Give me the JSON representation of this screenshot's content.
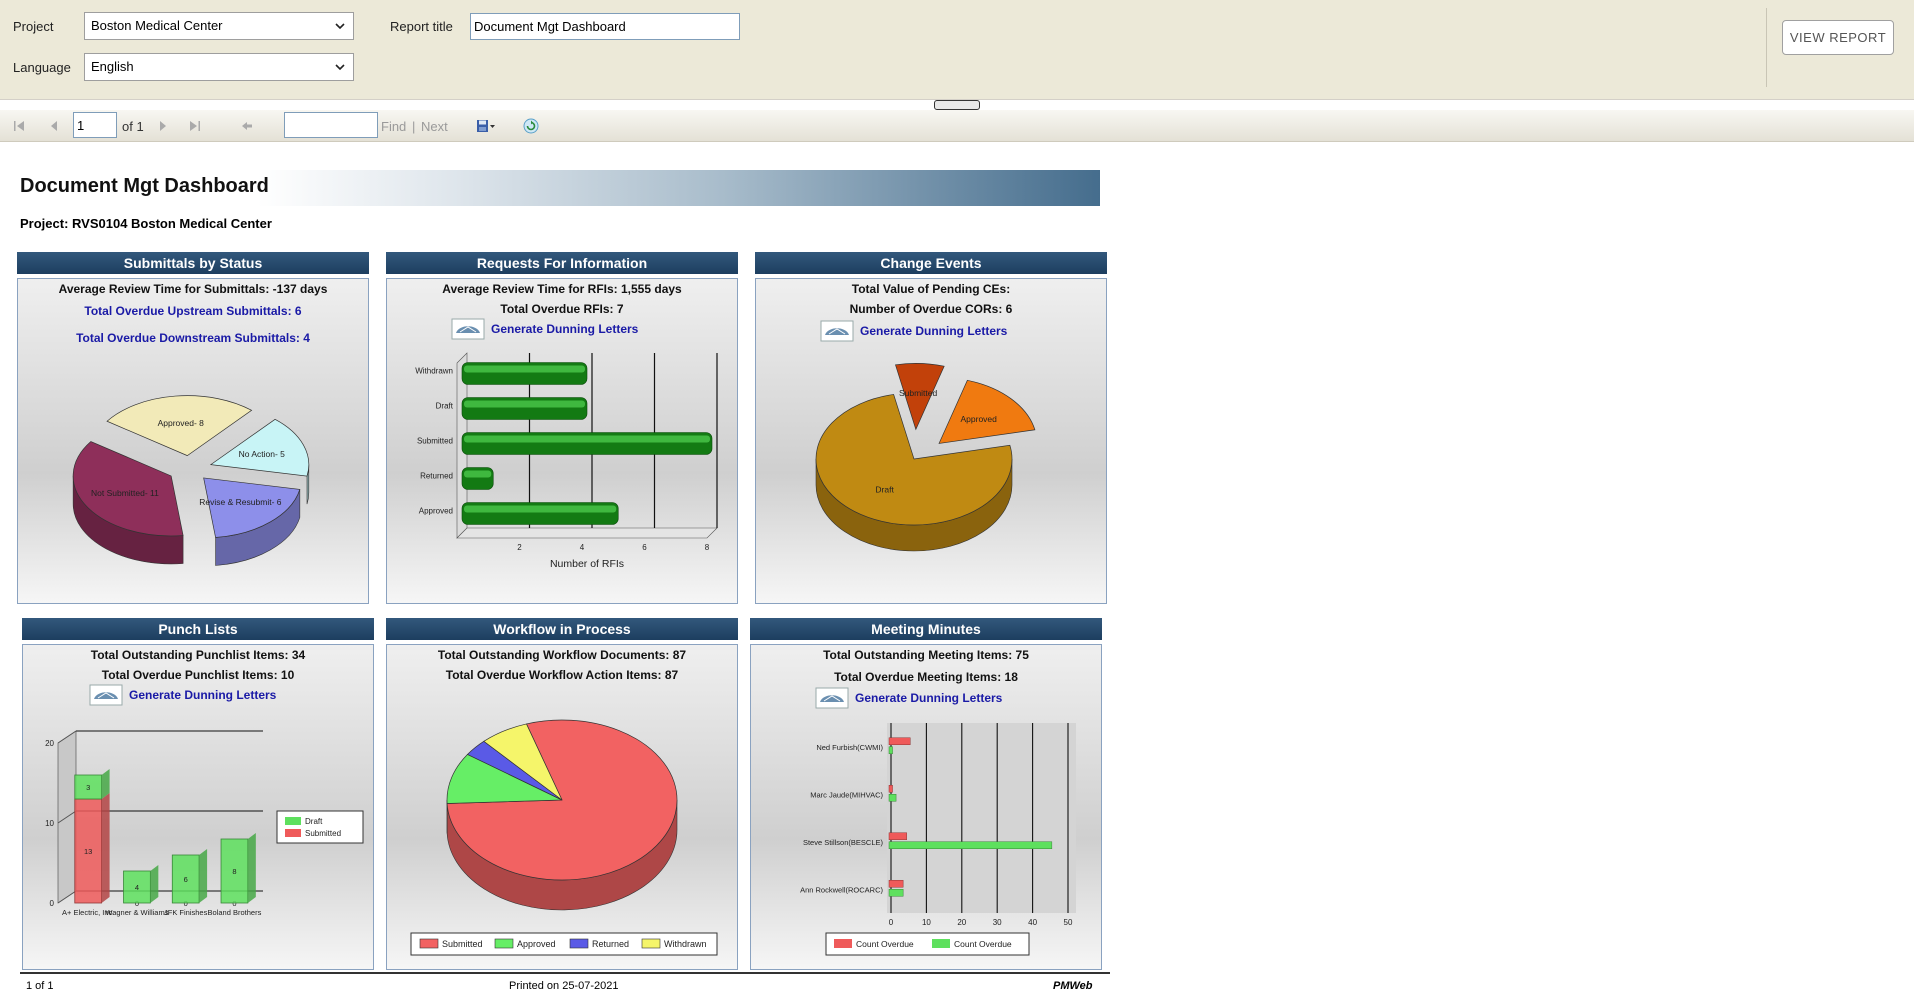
{
  "params": {
    "project_label": "Project",
    "project_value": "Boston Medical Center",
    "language_label": "Language",
    "language_value": "English",
    "report_title_label": "Report title",
    "report_title_value": "Document Mgt Dashboard",
    "view_report": "VIEW REPORT"
  },
  "toolbar": {
    "page_value": "1",
    "of_label": "of 1",
    "find_label": "Find",
    "sep": "|",
    "next_label": "Next"
  },
  "report": {
    "title": "Document Mgt Dashboard",
    "project_line": "Project: RVS0104 Boston Medical Center",
    "footer": {
      "page": "1 of 1",
      "printed": "Printed on 25-07-2021",
      "brand": "PMWeb"
    }
  },
  "panels": {
    "submittals": {
      "title": "Submittals by Status",
      "avg": "Average Review Time for Submittals:  -137 days",
      "upstream": "Total Overdue Upstream Submittals:  6",
      "downstream": "Total Overdue Downstream Submittals:  4"
    },
    "rfi": {
      "title": "Requests For Information",
      "avg": "Average Review Time for RFIs:  1,555 days",
      "overdue": "Total Overdue RFIs:  7",
      "dunning": "Generate Dunning Letters",
      "xlabel": "Number of RFIs"
    },
    "change": {
      "title": "Change Events",
      "value": "Total Value of Pending CEs:",
      "overdue": "Number of Overdue CORs: 6",
      "dunning": "Generate Dunning Letters"
    },
    "punch": {
      "title": "Punch Lists",
      "outstanding": "Total Outstanding Punchlist Items: 34",
      "overdue": "Total Overdue Punchlist Items: 10",
      "dunning": "Generate Dunning Letters"
    },
    "workflow": {
      "title": "Workflow in Process",
      "documents": "Total Outstanding Workflow Documents: 87",
      "overdue": "Total Overdue Workflow Action Items: 87"
    },
    "meeting": {
      "title": "Meeting Minutes",
      "outstanding": "Total Outstanding Meeting Items: 75",
      "overdue": "Total Overdue Meeting Items: 18",
      "dunning": "Generate Dunning Letters"
    }
  },
  "chart_data": [
    {
      "id": "submittals",
      "type": "pie",
      "slices": [
        {
          "label": "Approved- 8",
          "value": 8,
          "color": "#f2eab8"
        },
        {
          "label": "No Action- 5",
          "value": 5,
          "color": "#c8f4f6"
        },
        {
          "label": "Revise & Resubmit- 6",
          "value": 6,
          "color": "#8d8fea"
        },
        {
          "label": "Not Submitted- 11",
          "value": 11,
          "color": "#8e2f5a"
        }
      ]
    },
    {
      "id": "rfi",
      "type": "bar",
      "orientation": "horizontal",
      "categories": [
        "Withdrawn",
        "Draft",
        "Submitted",
        "Returned",
        "Approved"
      ],
      "values": [
        4,
        4,
        8,
        1,
        5
      ],
      "xticks": [
        2,
        4,
        6,
        8
      ],
      "xlim": [
        0,
        8
      ],
      "xlabel": "Number of RFIs",
      "color": "#1e8a1e"
    },
    {
      "id": "change",
      "type": "pie",
      "slices": [
        {
          "label": "Draft",
          "value": 75,
          "color": "#c08a12"
        },
        {
          "label": "Submitted",
          "value": 8,
          "color": "#c2410a"
        },
        {
          "label": "Approved",
          "value": 17,
          "color": "#f07a10"
        }
      ]
    },
    {
      "id": "punch",
      "type": "bar",
      "stacked": true,
      "categories": [
        "A+ Electric, Inc.",
        "Wagner & Williams",
        "JFK Finishes",
        "Boland Brothers"
      ],
      "series": [
        {
          "name": "Submitted",
          "values": [
            13,
            0,
            0,
            0
          ],
          "color": "#ef5a5a"
        },
        {
          "name": "Draft",
          "values": [
            3,
            4,
            6,
            8
          ],
          "color": "#5ee05e"
        }
      ],
      "yticks": [
        0,
        10,
        20
      ],
      "ylim": [
        0,
        20
      ],
      "legend": "right"
    },
    {
      "id": "workflow",
      "type": "pie",
      "slices": [
        {
          "label": "Submitted",
          "value": 69,
          "color": "#f26262"
        },
        {
          "label": "Approved",
          "value": 9,
          "color": "#66ee66"
        },
        {
          "label": "Returned",
          "value": 3,
          "color": "#5a5ae6"
        },
        {
          "label": "Withdrawn",
          "value": 6,
          "color": "#f5f56a"
        }
      ],
      "legend": "bottom"
    },
    {
      "id": "meeting",
      "type": "bar",
      "orientation": "horizontal",
      "categories": [
        "Ned Furbish(CWMI)",
        "Marc Jaude(MIHVAC)",
        "Steve Stillson(BESCLE)",
        "Ann Rockwell(ROCARC)"
      ],
      "xticks": [
        0,
        10,
        20,
        30,
        40,
        50
      ],
      "xlim": [
        0,
        50
      ],
      "series": [
        {
          "name": "Count Overdue",
          "color": "#ef5a5a",
          "values": [
            6,
            1,
            5,
            4
          ]
        },
        {
          "name": "Count Overdue",
          "color": "#5ee05e",
          "values": [
            1,
            2,
            46,
            4
          ]
        }
      ],
      "legend": "bottom"
    }
  ]
}
